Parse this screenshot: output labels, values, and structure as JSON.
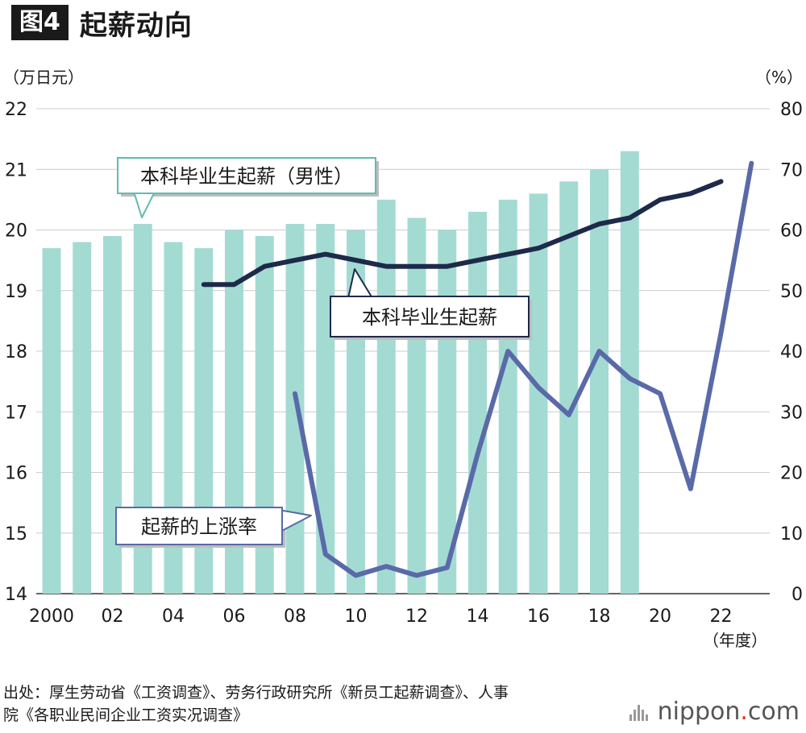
{
  "header": {
    "fig_label": "图4",
    "title": "起薪动向"
  },
  "source": {
    "line1": "出处：厚生劳动省《工资调查》、劳务行政研究所《新员工起薪调查》、人事",
    "line2": "院《各职业民间企业工资实况调查》"
  },
  "logo": {
    "name": "nippon",
    "dot": ".",
    "tld": "com"
  },
  "colors": {
    "bar": "#a3dbd3",
    "starting_salary_line": "#1e2a4a",
    "growth_line": "#5a6aa8",
    "grid": "#cccccc"
  },
  "chart_data": {
    "type": "bar+line",
    "title": "起薪动向",
    "left_axis": {
      "unit": "（万日元）",
      "ylim": [
        14,
        22
      ],
      "ticks": [
        "14",
        "15",
        "16",
        "17",
        "18",
        "19",
        "20",
        "21",
        "22"
      ]
    },
    "right_axis": {
      "unit": "（%）",
      "ylim": [
        0,
        80
      ],
      "ticks": [
        "0",
        "10",
        "20",
        "30",
        "40",
        "50",
        "60",
        "70",
        "80"
      ]
    },
    "x_unit": "（年度）",
    "years": [
      2000,
      2001,
      2002,
      2003,
      2004,
      2005,
      2006,
      2007,
      2008,
      2009,
      2010,
      2011,
      2012,
      2013,
      2014,
      2015,
      2016,
      2017,
      2018,
      2019,
      2020,
      2021,
      2022,
      2023
    ],
    "x_tick_labels": [
      {
        "year": 2000,
        "label": "2000"
      },
      {
        "year": 2002,
        "label": "02"
      },
      {
        "year": 2004,
        "label": "04"
      },
      {
        "year": 2006,
        "label": "06"
      },
      {
        "year": 2008,
        "label": "08"
      },
      {
        "year": 2010,
        "label": "10"
      },
      {
        "year": 2012,
        "label": "12"
      },
      {
        "year": 2014,
        "label": "14"
      },
      {
        "year": 2016,
        "label": "16"
      },
      {
        "year": 2018,
        "label": "18"
      },
      {
        "year": 2020,
        "label": "20"
      },
      {
        "year": 2022,
        "label": "22"
      }
    ],
    "series": [
      {
        "name": "本科毕业生起薪（男性）",
        "type": "bar",
        "axis": "left",
        "points": [
          {
            "year": 2000,
            "value": 19.7
          },
          {
            "year": 2001,
            "value": 19.8
          },
          {
            "year": 2002,
            "value": 19.9
          },
          {
            "year": 2003,
            "value": 20.1
          },
          {
            "year": 2004,
            "value": 19.8
          },
          {
            "year": 2005,
            "value": 19.7
          },
          {
            "year": 2006,
            "value": 20.0
          },
          {
            "year": 2007,
            "value": 19.9
          },
          {
            "year": 2008,
            "value": 20.1
          },
          {
            "year": 2009,
            "value": 20.1
          },
          {
            "year": 2010,
            "value": 20.0
          },
          {
            "year": 2011,
            "value": 20.5
          },
          {
            "year": 2012,
            "value": 20.2
          },
          {
            "year": 2013,
            "value": 20.0
          },
          {
            "year": 2014,
            "value": 20.3
          },
          {
            "year": 2015,
            "value": 20.5
          },
          {
            "year": 2016,
            "value": 20.6
          },
          {
            "year": 2017,
            "value": 20.8
          },
          {
            "year": 2018,
            "value": 21.0
          },
          {
            "year": 2019,
            "value": 21.3
          }
        ]
      },
      {
        "name": "本科毕业生起薪",
        "type": "line",
        "axis": "left",
        "points": [
          {
            "year": 2005,
            "value": 19.1
          },
          {
            "year": 2006,
            "value": 19.1
          },
          {
            "year": 2007,
            "value": 19.4
          },
          {
            "year": 2008,
            "value": 19.5
          },
          {
            "year": 2009,
            "value": 19.6
          },
          {
            "year": 2010,
            "value": 19.5
          },
          {
            "year": 2011,
            "value": 19.4
          },
          {
            "year": 2012,
            "value": 19.4
          },
          {
            "year": 2013,
            "value": 19.4
          },
          {
            "year": 2014,
            "value": 19.5
          },
          {
            "year": 2015,
            "value": 19.6
          },
          {
            "year": 2016,
            "value": 19.7
          },
          {
            "year": 2017,
            "value": 19.9
          },
          {
            "year": 2018,
            "value": 20.1
          },
          {
            "year": 2019,
            "value": 20.2
          },
          {
            "year": 2020,
            "value": 20.5
          },
          {
            "year": 2021,
            "value": 20.6
          },
          {
            "year": 2022,
            "value": 20.8
          }
        ]
      },
      {
        "name": "起薪的上涨率",
        "type": "line",
        "axis": "right",
        "points": [
          {
            "year": 2008,
            "value": 33
          },
          {
            "year": 2009,
            "value": 6.5
          },
          {
            "year": 2010,
            "value": 3
          },
          {
            "year": 2011,
            "value": 4.5
          },
          {
            "year": 2012,
            "value": 3
          },
          {
            "year": 2013,
            "value": 4.3
          },
          {
            "year": 2014,
            "value": 23
          },
          {
            "year": 2015,
            "value": 40
          },
          {
            "year": 2016,
            "value": 34
          },
          {
            "year": 2017,
            "value": 29.5
          },
          {
            "year": 2018,
            "value": 40
          },
          {
            "year": 2019,
            "value": 35.5
          },
          {
            "year": 2020,
            "value": 33
          },
          {
            "year": 2021,
            "value": 17.3
          },
          {
            "year": 2022,
            "value": 43
          },
          {
            "year": 2023,
            "value": 71
          }
        ]
      }
    ],
    "annotations": [
      {
        "text": "本科毕业生起薪（男性）",
        "target_series": 0
      },
      {
        "text": "本科毕业生起薪",
        "target_series": 1
      },
      {
        "text": "起薪的上涨率",
        "target_series": 2
      }
    ]
  }
}
